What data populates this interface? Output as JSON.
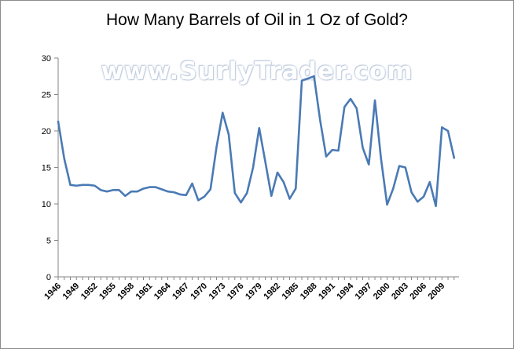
{
  "chart_data": {
    "type": "line",
    "title": "How Many Barrels of Oil in 1 Oz of Gold?",
    "watermark": "www.SurlyTrader.com",
    "xlabel": "",
    "ylabel": "",
    "ylim": [
      0,
      30
    ],
    "yticks": [
      0,
      5,
      10,
      15,
      20,
      25,
      30
    ],
    "xticks": [
      1946,
      1949,
      1952,
      1955,
      1958,
      1961,
      1964,
      1967,
      1970,
      1973,
      1976,
      1979,
      1982,
      1985,
      1988,
      1991,
      1994,
      1997,
      2000,
      2003,
      2006,
      2009
    ],
    "grid": false,
    "legend": "none",
    "line_color": "#4a7ab5",
    "series": [
      {
        "x": [
          1946,
          1947,
          1948,
          1949,
          1950,
          1951,
          1952,
          1953,
          1954,
          1955,
          1956,
          1957,
          1958,
          1959,
          1960,
          1961,
          1962,
          1963,
          1964,
          1965,
          1966,
          1967,
          1968,
          1969,
          1970,
          1971,
          1972,
          1973,
          1974,
          1975,
          1976,
          1977,
          1978,
          1979,
          1980,
          1981,
          1982,
          1983,
          1984,
          1985,
          1986,
          1987,
          1988,
          1989,
          1990,
          1991,
          1992,
          1993,
          1994,
          1995,
          1996,
          1997,
          1998,
          1999,
          2000,
          2001,
          2002,
          2003,
          2004,
          2005,
          2006,
          2007,
          2008,
          2009,
          2010,
          2011
        ],
        "values": [
          21.3,
          16.2,
          12.6,
          12.5,
          12.6,
          12.6,
          12.5,
          11.9,
          11.7,
          11.9,
          11.9,
          11.1,
          11.7,
          11.7,
          12.1,
          12.3,
          12.3,
          12.0,
          11.7,
          11.6,
          11.3,
          11.2,
          12.8,
          10.5,
          11.0,
          12.0,
          17.8,
          22.5,
          19.5,
          11.5,
          10.2,
          11.5,
          15.0,
          20.4,
          15.8,
          11.1,
          14.3,
          13.0,
          10.7,
          12.1,
          26.9,
          27.2,
          27.5,
          21.5,
          16.5,
          17.4,
          17.3,
          23.3,
          24.4,
          23.1,
          17.7,
          15.4,
          24.2,
          16.2,
          9.9,
          12.1,
          15.2,
          15.0,
          11.6,
          10.3,
          11.0,
          13.0,
          9.7,
          20.5,
          20.0,
          16.3
        ]
      }
    ]
  }
}
